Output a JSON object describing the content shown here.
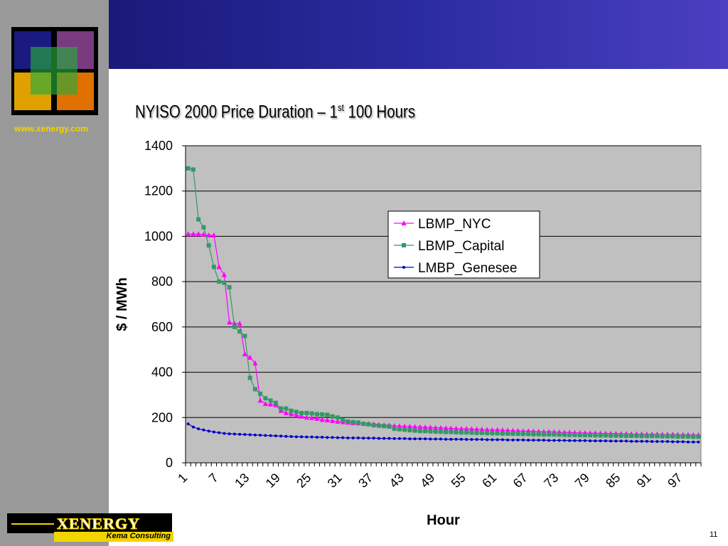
{
  "slide": {
    "website": "www.xenergy.com",
    "company_name": "XENERGY",
    "company_sub": "Kema Consulting",
    "title_main": "NYISO 2000 Price Duration – 1",
    "title_sup": "st",
    "title_end": " 100 Hours",
    "page_number": "11"
  },
  "chart_data": {
    "type": "line",
    "title": "",
    "xlabel": "Hour",
    "ylabel": "$ / MWh",
    "ylim": [
      0,
      1400
    ],
    "yticks": [
      0,
      200,
      400,
      600,
      800,
      1000,
      1200,
      1400
    ],
    "xlim": [
      1,
      100
    ],
    "xtick_labels": [
      "1",
      "7",
      "13",
      "19",
      "25",
      "31",
      "37",
      "43",
      "49",
      "55",
      "61",
      "67",
      "73",
      "79",
      "85",
      "91",
      "97"
    ],
    "grid": true,
    "legend_position": "upper-right",
    "background_color": "#c0c0c0",
    "series": [
      {
        "name": "LBMP_NYC",
        "color": "#ff00ff",
        "marker": "triangle",
        "values": [
          1010,
          1010,
          1010,
          1008,
          1005,
          1005,
          865,
          830,
          620,
          615,
          615,
          480,
          465,
          440,
          275,
          260,
          258,
          255,
          230,
          220,
          215,
          210,
          205,
          200,
          198,
          195,
          190,
          188,
          185,
          182,
          180,
          178,
          176,
          175,
          173,
          172,
          170,
          168,
          166,
          165,
          163,
          162,
          161,
          160,
          159,
          158,
          157,
          156,
          155,
          154,
          153,
          152,
          151,
          150,
          150,
          149,
          148,
          147,
          146,
          145,
          145,
          144,
          143,
          142,
          141,
          140,
          140,
          139,
          138,
          137,
          137,
          136,
          135,
          134,
          134,
          133,
          132,
          132,
          131,
          131,
          130,
          130,
          129,
          129,
          128,
          128,
          127,
          127,
          127,
          126,
          126,
          126,
          125,
          125,
          125,
          124,
          124,
          124,
          123,
          123
        ]
      },
      {
        "name": "LBMP_Capital",
        "color": "#339966",
        "marker": "square",
        "values": [
          1300,
          1295,
          1075,
          1040,
          960,
          865,
          800,
          795,
          775,
          600,
          580,
          560,
          375,
          325,
          305,
          285,
          275,
          265,
          240,
          240,
          230,
          225,
          220,
          220,
          218,
          215,
          214,
          212,
          205,
          200,
          190,
          182,
          180,
          178,
          172,
          170,
          166,
          164,
          162,
          160,
          150,
          148,
          146,
          144,
          142,
          140,
          140,
          139,
          138,
          137,
          136,
          136,
          135,
          134,
          134,
          133,
          132,
          132,
          131,
          130,
          130,
          129,
          129,
          128,
          128,
          127,
          127,
          126,
          126,
          125,
          125,
          125,
          124,
          124,
          123,
          123,
          122,
          122,
          122,
          121,
          121,
          121,
          120,
          120,
          120,
          119,
          119,
          119,
          118,
          118,
          118,
          118,
          117,
          117,
          117,
          116,
          116,
          116,
          115,
          115
        ]
      },
      {
        "name": "LMBP_Genesee",
        "color": "#0000cc",
        "marker": "dot",
        "values": [
          172,
          158,
          150,
          145,
          140,
          136,
          133,
          130,
          128,
          127,
          126,
          125,
          124,
          123,
          122,
          121,
          120,
          119,
          118,
          117,
          116,
          115,
          115,
          114,
          114,
          113,
          113,
          112,
          112,
          111,
          111,
          110,
          110,
          110,
          109,
          109,
          109,
          108,
          108,
          108,
          107,
          107,
          107,
          106,
          106,
          106,
          106,
          105,
          105,
          105,
          104,
          104,
          104,
          104,
          103,
          103,
          103,
          103,
          102,
          102,
          102,
          102,
          101,
          101,
          101,
          101,
          100,
          100,
          100,
          100,
          99,
          99,
          99,
          99,
          98,
          98,
          98,
          98,
          97,
          97,
          97,
          97,
          96,
          96,
          96,
          96,
          95,
          95,
          95,
          95,
          94,
          94,
          94,
          94,
          93,
          93,
          93,
          92,
          92,
          92
        ]
      }
    ]
  }
}
